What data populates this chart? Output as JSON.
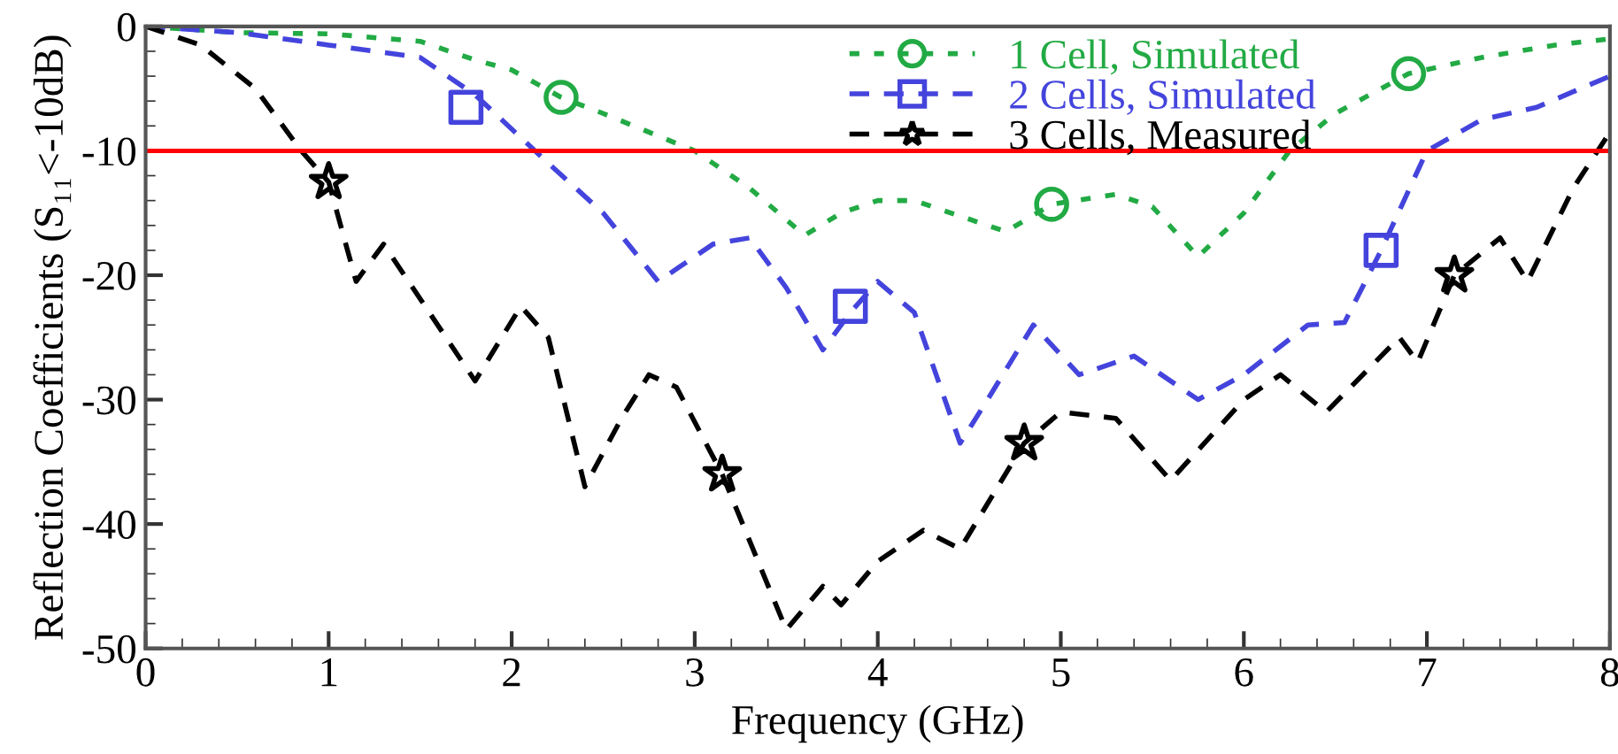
{
  "chart_data": {
    "type": "line",
    "xlabel": "Frequency (GHz)",
    "ylabel": "Reflection Coefficients (S₁₁<-10dB)",
    "xlim": [
      0,
      8
    ],
    "xticks": [
      0,
      1,
      2,
      3,
      4,
      5,
      6,
      7,
      8
    ],
    "ylim": [
      -50,
      0
    ],
    "yticks": [
      -50,
      -40,
      -30,
      -20,
      -10,
      0
    ],
    "grid": false,
    "legend": "top",
    "ref_lines": [
      {
        "axis": "y",
        "value": -10,
        "color": "#ff0000",
        "line_style": "solid"
      }
    ],
    "series": [
      {
        "name": "1 Cell, Simulated",
        "color": "#22aa44",
        "line_style": "dotted",
        "x": [
          0,
          0.5,
          1,
          1.5,
          1.8,
          2,
          2.27,
          2.5,
          3,
          3.3,
          3.6,
          3.8,
          4,
          4.2,
          4.5,
          4.7,
          4.95,
          5.3,
          5.5,
          5.75,
          6,
          6.25,
          6.5,
          6.9,
          7.3,
          7.7,
          8
        ],
        "values": [
          0,
          -0.5,
          -0.6,
          -1.2,
          -2.7,
          -3.5,
          -5.7,
          -7,
          -10,
          -13,
          -16.8,
          -15,
          -14,
          -14,
          -15.5,
          -16.5,
          -14.3,
          -13.5,
          -14.5,
          -18.5,
          -15,
          -10,
          -7,
          -3.8,
          -2.5,
          -1.5,
          -1
        ]
      },
      {
        "type": "scatter",
        "color": "#22aa44",
        "marker": "circle",
        "x": [
          2.27,
          4.95,
          6.9
        ],
        "values": [
          -5.7,
          -14.3,
          -3.8
        ]
      },
      {
        "name": "2 Cells, Simulated",
        "color": "#4444dd",
        "line_style": "dashed",
        "x": [
          0,
          0.5,
          1,
          1.5,
          1.8,
          2.2,
          2.5,
          2.8,
          3.1,
          3.3,
          3.5,
          3.7,
          3.85,
          4,
          4.2,
          4.45,
          4.6,
          4.85,
          5.1,
          5.4,
          5.75,
          6,
          6.35,
          6.55,
          6.75,
          7,
          7.3,
          7.6,
          8
        ],
        "values": [
          0,
          -0.5,
          -1.5,
          -2.5,
          -5.5,
          -11,
          -15,
          -20.5,
          -17.5,
          -17,
          -21,
          -26,
          -23,
          -20.5,
          -23,
          -33.5,
          -30,
          -24,
          -28,
          -26.5,
          -30,
          -28,
          -24,
          -23.8,
          -18,
          -10,
          -7.5,
          -6.5,
          -4
        ]
      },
      {
        "type": "scatter",
        "color": "#4444dd",
        "marker": "square",
        "x": [
          1.75,
          3.85,
          6.75
        ],
        "values": [
          -6.5,
          -22.5,
          -18
        ]
      },
      {
        "name": "3 Cells, Measured",
        "color": "#000000",
        "line_style": "dashed",
        "x": [
          0,
          0.3,
          0.6,
          0.85,
          1,
          1.15,
          1.3,
          1.8,
          2.05,
          2.2,
          2.4,
          2.6,
          2.75,
          2.9,
          3.15,
          3.5,
          3.7,
          3.8,
          4,
          4.25,
          4.45,
          4.8,
          5,
          5.3,
          5.6,
          6,
          6.2,
          6.45,
          6.85,
          6.95,
          7.15,
          7.4,
          7.55,
          7.8,
          8
        ],
        "values": [
          0,
          -1.5,
          -5,
          -10,
          -12.5,
          -20.5,
          -17.5,
          -28.5,
          -22.5,
          -25,
          -37,
          -31.5,
          -28,
          -29,
          -36,
          -48.5,
          -45,
          -46.5,
          -43,
          -40.5,
          -42,
          -33.5,
          -31,
          -31.5,
          -36.5,
          -30,
          -28,
          -31,
          -25,
          -27,
          -20,
          -17,
          -20.5,
          -13,
          -8.5
        ]
      },
      {
        "type": "scatter",
        "color": "#000000",
        "marker": "star",
        "x": [
          1,
          3.15,
          4.8,
          7.15
        ],
        "values": [
          -12.5,
          -36,
          -33.5,
          -20
        ]
      }
    ]
  }
}
